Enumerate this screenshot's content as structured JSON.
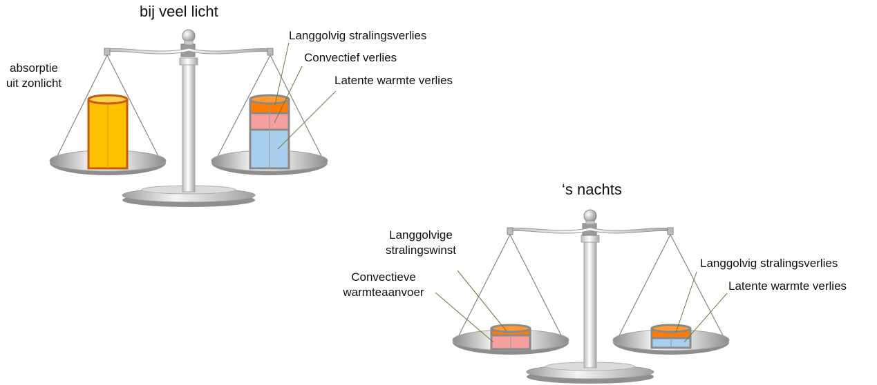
{
  "scale_day": {
    "title": "bij veel licht",
    "left_label_line1": "absorptie",
    "left_label_line2": "uit zonlicht",
    "right_labels": [
      "Langgolvig  stralingsverlies",
      "Convectief verlies",
      "Latente warmte verlies"
    ]
  },
  "scale_night": {
    "title": "‘s nachts",
    "left_labels": [
      {
        "line1": "Langgolvige",
        "line2": "stralingswinst"
      },
      {
        "line1": "Convectieve",
        "line2": "warmteaanvoer"
      }
    ],
    "right_labels": [
      "Langgolvig  stralingsverlies",
      "Latente warmte verlies"
    ]
  },
  "colors": {
    "sunlight_fill": "#FFC000",
    "sunlight_border": "#C55A11",
    "longwave": "#FF7C00",
    "convective": "#F8A0A0",
    "latent": "#A9CFEF",
    "cylinder_border": "#8A8A8A",
    "metal_light": "#F2F2F2",
    "metal_dark": "#9A9A9A",
    "leader_line": "#6B7B3A"
  }
}
